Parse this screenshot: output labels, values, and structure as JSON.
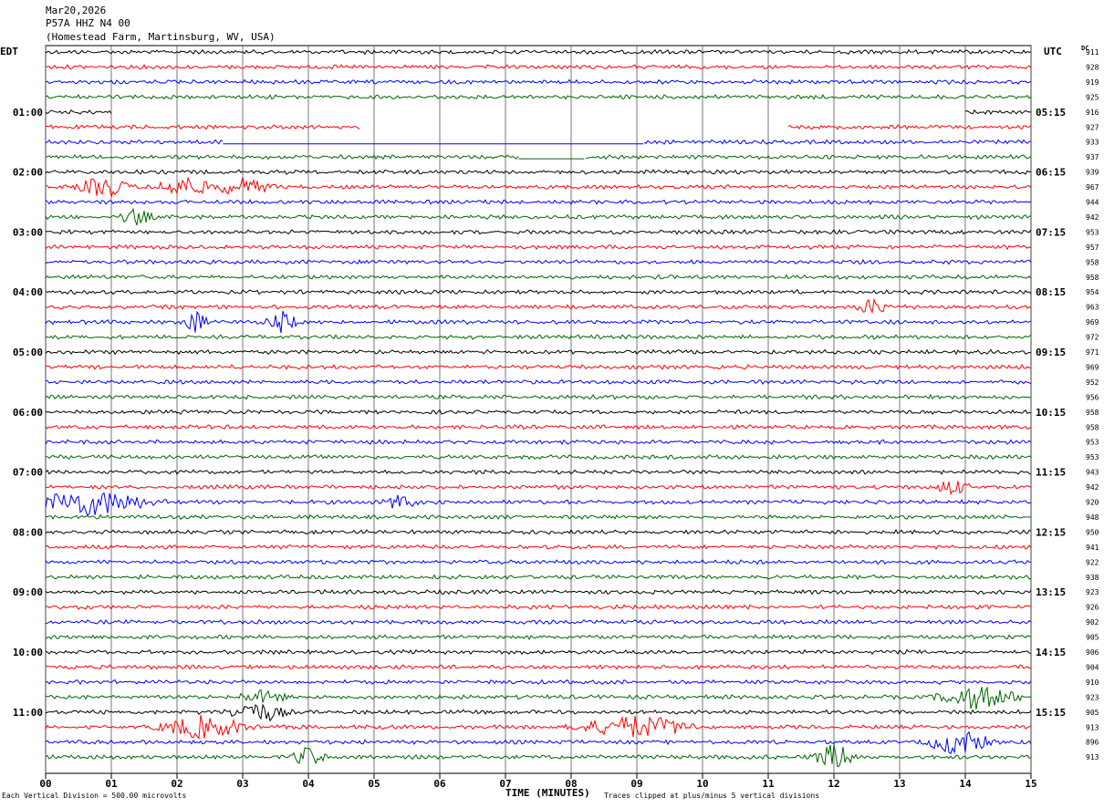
{
  "header": {
    "date": "Mar20,2026",
    "station": "P57A HHZ N4 00",
    "location": "(Homestead Farm, Martinsburg, WV, USA)"
  },
  "left_tz": "EDT",
  "right_tz": "UTC",
  "dc_label": "DC",
  "footer": {
    "left_note": "Each Vertical Division =  500.00 microvolts",
    "axis_title": "TIME (MINUTES)",
    "right_note": "Traces clipped at plus/minus 5 vertical divisions"
  },
  "colors": {
    "trace_cycle": [
      "#000000",
      "#ff0000",
      "#0000ff",
      "#006400"
    ],
    "grid": "#000000"
  },
  "chart_data": {
    "type": "line",
    "title": "",
    "xlabel": "TIME (MINUTES)",
    "ylabel": "",
    "xlim": [
      0,
      15
    ],
    "x_ticks": [
      "00",
      "01",
      "02",
      "03",
      "04",
      "05",
      "06",
      "07",
      "08",
      "09",
      "10",
      "11",
      "12",
      "13",
      "14",
      "15"
    ],
    "grid": true,
    "rows_per_hour": 4,
    "edt_hour_labels": [
      "01:00",
      "02:00",
      "03:00",
      "04:00",
      "05:00",
      "06:00",
      "07:00",
      "08:00",
      "09:00",
      "10:00",
      "11:00"
    ],
    "utc_hour_labels": [
      "05:15",
      "06:15",
      "07:15",
      "08:15",
      "09:15",
      "10:15",
      "11:15",
      "12:15",
      "13:15",
      "14:15",
      "15:15"
    ],
    "dc_offsets": [
      911,
      928,
      919,
      925,
      916,
      927,
      933,
      937,
      939,
      967,
      944,
      942,
      953,
      957,
      958,
      958,
      954,
      963,
      969,
      972,
      971,
      969,
      952,
      956,
      958,
      958,
      953,
      953,
      943,
      942,
      920,
      948,
      950,
      941,
      922,
      938,
      923,
      926,
      902,
      905,
      906,
      904,
      910,
      923,
      905,
      913,
      896,
      913
    ],
    "trace_gaps": [
      {
        "row": 4,
        "from_min": 1.0,
        "to_min": 14.0
      },
      {
        "row": 5,
        "from_min": 4.8,
        "to_min": 11.3
      },
      {
        "row": 6,
        "from_min": 2.7,
        "to_min": 9.1
      },
      {
        "row": 7,
        "from_min": 7.2,
        "to_min": 8.2
      }
    ],
    "events": [
      {
        "row": 9,
        "at_min": 0.9,
        "span_min": 0.5,
        "amp": 4
      },
      {
        "row": 9,
        "at_min": 2.1,
        "span_min": 0.5,
        "amp": 4
      },
      {
        "row": 9,
        "at_min": 3.0,
        "span_min": 0.6,
        "amp": 3
      },
      {
        "row": 11,
        "at_min": 1.4,
        "span_min": 0.3,
        "amp": 3
      },
      {
        "row": 18,
        "at_min": 2.3,
        "span_min": 0.2,
        "amp": 5
      },
      {
        "row": 18,
        "at_min": 3.6,
        "span_min": 0.3,
        "amp": 4
      },
      {
        "row": 17,
        "at_min": 12.6,
        "span_min": 0.3,
        "amp": 3
      },
      {
        "row": 30,
        "at_min": 0.7,
        "span_min": 1.2,
        "amp": 5
      },
      {
        "row": 30,
        "at_min": 5.4,
        "span_min": 0.3,
        "amp": 3
      },
      {
        "row": 29,
        "at_min": 13.8,
        "span_min": 0.3,
        "amp": 3
      },
      {
        "row": 43,
        "at_min": 14.2,
        "span_min": 0.8,
        "amp": 4
      },
      {
        "row": 43,
        "at_min": 3.3,
        "span_min": 0.5,
        "amp": 2
      },
      {
        "row": 44,
        "at_min": 3.2,
        "span_min": 0.6,
        "amp": 4
      },
      {
        "row": 45,
        "at_min": 2.4,
        "span_min": 0.9,
        "amp": 4
      },
      {
        "row": 45,
        "at_min": 9.0,
        "span_min": 1.2,
        "amp": 4
      },
      {
        "row": 46,
        "at_min": 13.9,
        "span_min": 0.6,
        "amp": 5
      },
      {
        "row": 47,
        "at_min": 12.0,
        "span_min": 0.4,
        "amp": 5
      },
      {
        "row": 47,
        "at_min": 4.0,
        "span_min": 0.3,
        "amp": 4
      }
    ]
  }
}
